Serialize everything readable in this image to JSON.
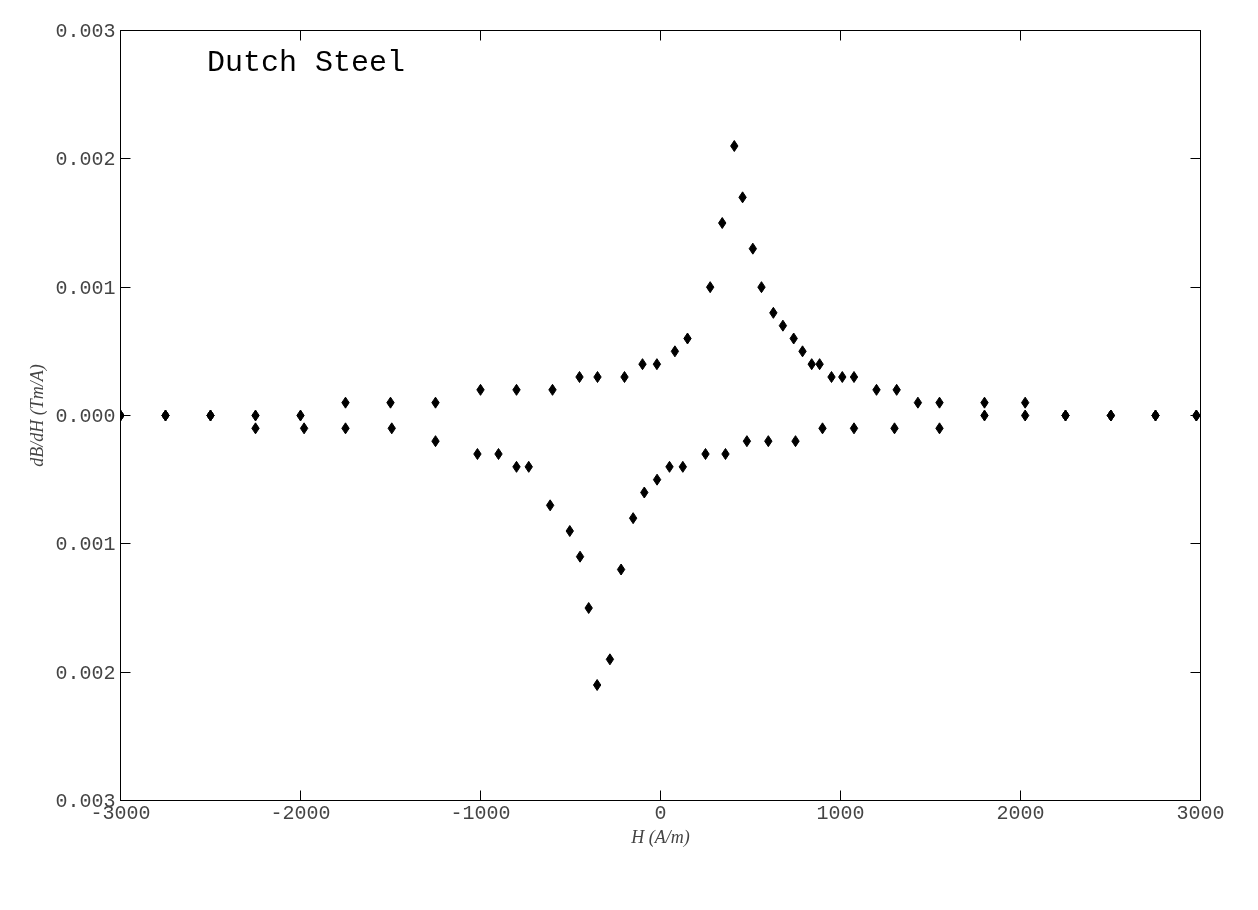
{
  "chart_data": {
    "type": "scatter",
    "title": "Dutch Steel",
    "xlabel": "H (A/m)",
    "ylabel": "dB/dH (Tm/A)",
    "xlim": [
      -3000,
      3000
    ],
    "xticks": [
      -3000,
      -2000,
      -1000,
      0,
      1000,
      2000,
      3000
    ],
    "ylim": [
      -0.003,
      0.003
    ],
    "yticks": [
      {
        "value": -0.003,
        "label": "0.003"
      },
      {
        "value": -0.002,
        "label": "0.002"
      },
      {
        "value": -0.001,
        "label": "0.001"
      },
      {
        "value": 0,
        "label": "0.000"
      },
      {
        "value": 0.001,
        "label": "0.001"
      },
      {
        "value": 0.002,
        "label": "0.002"
      },
      {
        "value": 0.003,
        "label": "0.003"
      }
    ],
    "marker": "diamond",
    "grid": false,
    "series": [
      {
        "color": "#000000",
        "x": [
          -3000,
          -2750,
          -2500,
          -2250,
          -2000,
          -1750,
          -1500,
          -1250,
          -1000,
          -800,
          -600,
          -450,
          -350,
          -200,
          -100,
          -20,
          80,
          150,
          276,
          343,
          410,
          456,
          513,
          561,
          627,
          680,
          740,
          789,
          840,
          884,
          950,
          1010,
          1075,
          1200,
          1312,
          1430,
          1550,
          1800,
          2026,
          2250,
          2502,
          2750,
          2977
        ],
        "values": [
          0,
          0,
          0,
          0,
          0,
          0.0001,
          0.0001,
          0.0001,
          0.0002,
          0.0002,
          0.0002,
          0.0003,
          0.0003,
          0.0003,
          0.0004,
          0.0004,
          0.0005,
          0.0006,
          0.001,
          0.0015,
          0.0021,
          0.0017,
          0.0013,
          0.001,
          0.0008,
          0.0007,
          0.0006,
          0.0005,
          0.0004,
          0.0004,
          0.0003,
          0.0003,
          0.0003,
          0.0002,
          0.0002,
          0.0001,
          0.0001,
          0.0001,
          0.0001,
          0,
          0,
          0,
          0
        ]
      },
      {
        "color": "#000000",
        "x": [
          -3000,
          -2750,
          -2500,
          -2250,
          -1980,
          -1750,
          -1493,
          -1250,
          -1017,
          -900,
          -800,
          -732,
          -613,
          -504,
          -447,
          -399,
          -352,
          -281,
          -219,
          -152,
          -90,
          -19,
          50,
          124,
          250,
          361,
          480,
          599,
          750,
          900,
          1075,
          1300,
          1550,
          1800,
          2026,
          2250,
          2502,
          2750,
          2977
        ],
        "values": [
          0,
          0,
          0,
          -0.0001,
          -0.0001,
          -0.0001,
          -0.0001,
          -0.0002,
          -0.0003,
          -0.0003,
          -0.0004,
          -0.0004,
          -0.0007,
          -0.0009,
          -0.0011,
          -0.0015,
          -0.0021,
          -0.0019,
          -0.0012,
          -0.0008,
          -0.0006,
          -0.0005,
          -0.0004,
          -0.0004,
          -0.0003,
          -0.0003,
          -0.0002,
          -0.0002,
          -0.0002,
          -0.0001,
          -0.0001,
          -0.0001,
          -0.0001,
          0,
          0,
          0,
          0,
          0,
          0
        ]
      }
    ]
  }
}
